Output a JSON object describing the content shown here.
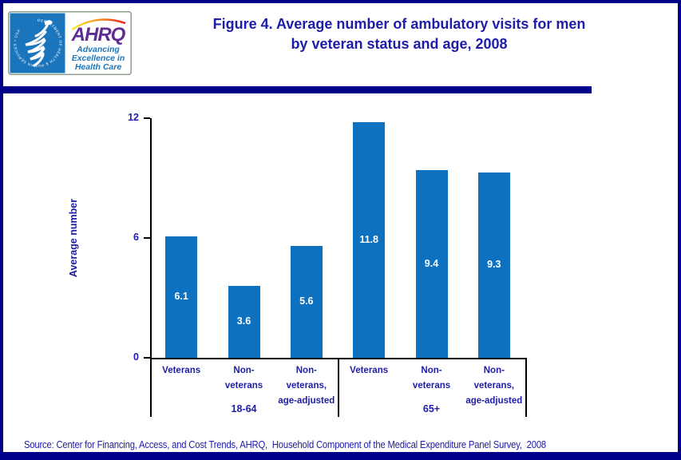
{
  "page": {
    "title_line1": "Figure 4. Average number of ambulatory visits for men",
    "title_line2": "by veteran status and age, 2008"
  },
  "logo": {
    "agency_acronym": "AHRQ",
    "tagline_lines": [
      "Advancing",
      "Excellence in",
      "Health Care"
    ],
    "hhs_seal_text": "DEPARTMENT OF HEALTH & HUMAN SERVICES • USA"
  },
  "source": {
    "text": "Source: Center for Financing, Access, and Cost Trends, AHRQ,  Household Component of the Medical Expenditure Panel Survey,  2008"
  },
  "colors": {
    "navy": "#00008B",
    "title_blue": "#1E1CA8",
    "bar_blue": "#0D71C0",
    "logo_square_blue": "#1B75BC",
    "ahrq_purple": "#5F2D91",
    "logo_border_gray": "#8C9E8C",
    "rainbow": [
      "#F9ED32",
      "#F7941D",
      "#ED1C24"
    ],
    "axis_black": "#000000",
    "value_label_white": "#FFFFFF"
  },
  "chart_data": {
    "type": "bar",
    "title": "Figure 4. Average number of ambulatory visits for men by veteran status and age, 2008",
    "xlabel": "",
    "ylabel": "Average number",
    "ylim": [
      0,
      12
    ],
    "yticks": [
      0,
      6,
      12
    ],
    "grid": false,
    "legend": false,
    "value_labels_shown": true,
    "groups": [
      {
        "label": "18-64",
        "categories": [
          "Veterans",
          "Non-veterans",
          "Non-veterans, age-adjusted"
        ],
        "values": [
          6.1,
          3.6,
          5.6
        ]
      },
      {
        "label": "65+",
        "categories": [
          "Veterans",
          "Non-veterans",
          "Non-veterans, age-adjusted"
        ],
        "values": [
          11.8,
          9.4,
          9.3
        ]
      }
    ],
    "category_display_lines": [
      [
        "Veterans"
      ],
      [
        "Non-",
        "veterans"
      ],
      [
        "Non-",
        "veterans,",
        "age-adjusted"
      ]
    ]
  }
}
